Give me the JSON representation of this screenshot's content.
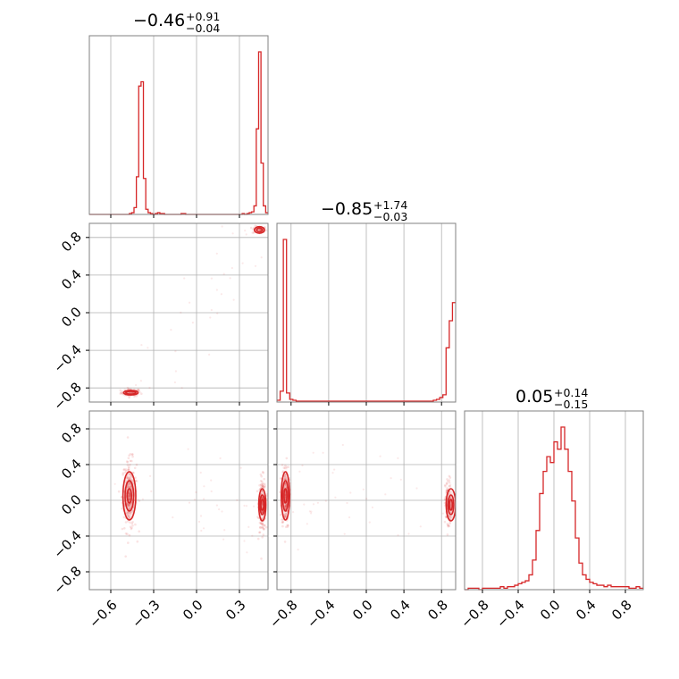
{
  "chart_data": {
    "type": "corner",
    "figure": "corner plot of three parameters: 1D marginal histograms on the diagonal, 2D sample scatter with density contours below the diagonal",
    "colors": {
      "accent": "#d62728",
      "grid": "#b0b0b0",
      "frame": "#808080"
    },
    "grid": true,
    "parameters": [
      {
        "median": "−0.46",
        "plus": "+0.91",
        "minus": "−0.04",
        "range": [
          -0.75,
          0.5
        ],
        "ticks": [
          -0.6,
          -0.3,
          0.0,
          0.3
        ],
        "tick_labels": [
          "−0.6",
          "−0.3",
          "0.0",
          "0.3"
        ],
        "histogram": {
          "bin_edges": [
            -0.75,
            0.5
          ],
          "counts": [
            0,
            0,
            0,
            0,
            0,
            0,
            0,
            0,
            0,
            0,
            0,
            0,
            0,
            0,
            0,
            0,
            0,
            1,
            2,
            8,
            44,
            150,
            155,
            42,
            6,
            2,
            1,
            0,
            1,
            2,
            1,
            1,
            0,
            0,
            0,
            0,
            0,
            0,
            0,
            1,
            1,
            0,
            0,
            0,
            0,
            0,
            0,
            0,
            0,
            0,
            0,
            0,
            0,
            0,
            0,
            0,
            0,
            0,
            0,
            0,
            0,
            0,
            0,
            0,
            0,
            1,
            0,
            1,
            2,
            3,
            10,
            100,
            190,
            60,
            10,
            2
          ]
        }
      },
      {
        "median": "−0.85",
        "plus": "+1.74",
        "minus": "−0.03",
        "range": [
          -0.95,
          0.95
        ],
        "ticks": [
          -0.8,
          -0.4,
          0.0,
          0.4,
          0.8
        ],
        "tick_labels": [
          "−0.8",
          "−0.4",
          "0.0",
          "0.4",
          "0.8"
        ],
        "histogram": {
          "bin_edges": [
            -0.95,
            0.95
          ],
          "counts": [
            2,
            12,
            180,
            10,
            3,
            2,
            1,
            1,
            1,
            1,
            1,
            1,
            1,
            1,
            1,
            1,
            1,
            1,
            1,
            1,
            1,
            1,
            1,
            1,
            1,
            1,
            1,
            1,
            1,
            1,
            1,
            1,
            1,
            1,
            1,
            1,
            1,
            1,
            1,
            1,
            1,
            1,
            1,
            1,
            1,
            1,
            1,
            1,
            1,
            2,
            3,
            5,
            8,
            60,
            90,
            110
          ]
        }
      },
      {
        "median": "0.05",
        "plus": "+0.14",
        "minus": "−0.15",
        "range": [
          -1.0,
          1.0
        ],
        "ticks": [
          -0.8,
          -0.4,
          0.0,
          0.4,
          0.8
        ],
        "tick_labels": [
          "−0.8",
          "−0.4",
          "0.0",
          "0.4",
          "0.8"
        ],
        "histogram": {
          "bin_edges": [
            -1.0,
            1.0
          ],
          "counts": [
            0,
            1,
            1,
            1,
            0,
            1,
            1,
            1,
            1,
            1,
            2,
            1,
            2,
            2,
            3,
            4,
            5,
            6,
            10,
            20,
            40,
            65,
            80,
            90,
            86,
            100,
            95,
            110,
            95,
            80,
            60,
            35,
            18,
            10,
            7,
            5,
            4,
            3,
            3,
            2,
            3,
            2,
            2,
            2,
            2,
            2,
            1,
            1,
            2,
            1
          ]
        }
      }
    ],
    "panels_2d": [
      {
        "x_param": 0,
        "y_param": 1,
        "clusters": [
          {
            "x": -0.46,
            "y": -0.85,
            "sx": 0.035,
            "sy": 0.02,
            "n": 90
          },
          {
            "x": 0.44,
            "y": 0.88,
            "sx": 0.025,
            "sy": 0.02,
            "n": 50
          }
        ],
        "contours": [
          {
            "x": -0.46,
            "y": -0.85,
            "rx": [
              0.05,
              0.035
            ],
            "ry": [
              0.025,
              0.015
            ]
          },
          {
            "x": 0.44,
            "y": 0.88,
            "rx": [
              0.035,
              0.02
            ],
            "ry": [
              0.035,
              0.02
            ]
          }
        ]
      },
      {
        "x_param": 0,
        "y_param": 2,
        "clusters": [
          {
            "x": -0.47,
            "y": 0.05,
            "sx": 0.025,
            "sy": 0.2,
            "n": 220
          },
          {
            "x": 0.46,
            "y": -0.05,
            "sx": 0.012,
            "sy": 0.15,
            "n": 160
          }
        ],
        "contours": [
          {
            "x": -0.47,
            "y": 0.05,
            "rx": [
              0.045,
              0.03,
              0.015
            ],
            "ry": [
              0.27,
              0.17,
              0.08
            ]
          },
          {
            "x": 0.46,
            "y": -0.05,
            "rx": [
              0.025,
              0.017,
              0.01
            ],
            "ry": [
              0.18,
              0.11,
              0.06
            ]
          }
        ]
      },
      {
        "x_param": 1,
        "y_param": 2,
        "clusters": [
          {
            "x": -0.86,
            "y": 0.05,
            "sx": 0.02,
            "sy": 0.18,
            "n": 180
          },
          {
            "x": 0.87,
            "y": -0.05,
            "sx": 0.015,
            "sy": 0.15,
            "n": 120
          }
        ],
        "contours": [
          {
            "x": -0.86,
            "y": 0.05,
            "rx": [
              0.045,
              0.03,
              0.015
            ],
            "ry": [
              0.27,
              0.17,
              0.08
            ]
          },
          {
            "x": 0.9,
            "y": -0.05,
            "rx": [
              0.05,
              0.03,
              0.015
            ],
            "ry": [
              0.18,
              0.11,
              0.06
            ]
          }
        ]
      }
    ]
  }
}
